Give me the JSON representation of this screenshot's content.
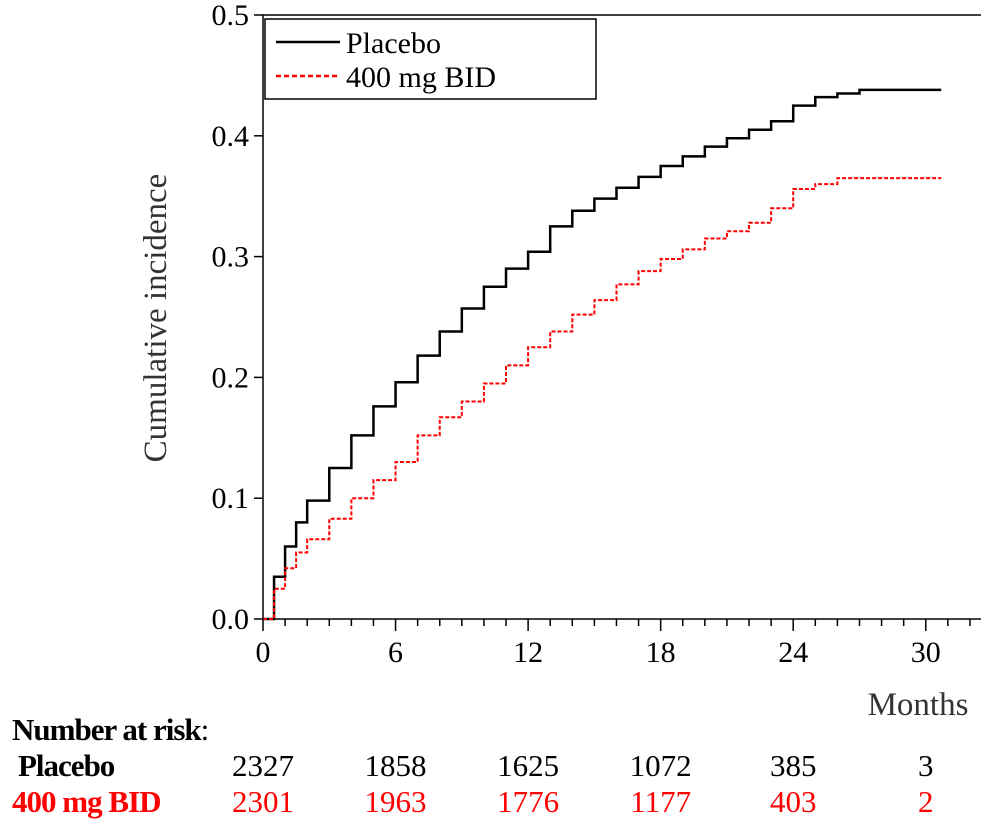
{
  "chart_data": {
    "type": "line",
    "title": "",
    "xlabel": "Months",
    "ylabel": "Cumulative incidence",
    "xlim": [
      0,
      32.5
    ],
    "ylim": [
      0,
      0.5
    ],
    "xticks": [
      0,
      6,
      12,
      18,
      24,
      30
    ],
    "xtick_labels": [
      "0",
      "6",
      "12",
      "18",
      "24",
      "30"
    ],
    "yticks": [
      0.0,
      0.1,
      0.2,
      0.3,
      0.4,
      0.5
    ],
    "ytick_labels": [
      "0.0",
      "0.1",
      "0.2",
      "0.3",
      "0.4",
      "0.5"
    ],
    "legend_position": "top-left",
    "grid": false,
    "series": [
      {
        "name": "Placebo",
        "color": "#000000",
        "style": "solid",
        "x": [
          0,
          0.5,
          1,
          1.5,
          2,
          3,
          4,
          5,
          6,
          7,
          8,
          9,
          10,
          11,
          12,
          13,
          14,
          15,
          16,
          17,
          18,
          19,
          20,
          21,
          22,
          23,
          24,
          25,
          26,
          27,
          28,
          29,
          30,
          30.7
        ],
        "y": [
          0,
          0.035,
          0.06,
          0.08,
          0.098,
          0.125,
          0.152,
          0.176,
          0.196,
          0.218,
          0.238,
          0.257,
          0.275,
          0.29,
          0.304,
          0.325,
          0.338,
          0.348,
          0.357,
          0.366,
          0.375,
          0.383,
          0.391,
          0.398,
          0.405,
          0.412,
          0.425,
          0.432,
          0.435,
          0.438,
          0.438,
          0.438,
          0.438,
          0.438
        ]
      },
      {
        "name": "400 mg BID",
        "color": "#ff0000",
        "style": "dashed",
        "x": [
          0,
          0.5,
          1,
          1.5,
          2,
          3,
          4,
          5,
          6,
          7,
          8,
          9,
          10,
          11,
          12,
          13,
          14,
          15,
          16,
          17,
          18,
          19,
          20,
          21,
          22,
          23,
          24,
          25,
          26,
          27,
          28,
          29,
          30,
          30.7
        ],
        "y": [
          0,
          0.025,
          0.042,
          0.055,
          0.066,
          0.083,
          0.1,
          0.115,
          0.13,
          0.152,
          0.167,
          0.18,
          0.195,
          0.21,
          0.225,
          0.238,
          0.252,
          0.264,
          0.277,
          0.288,
          0.298,
          0.306,
          0.315,
          0.321,
          0.328,
          0.34,
          0.356,
          0.36,
          0.365,
          0.365,
          0.365,
          0.365,
          0.365,
          0.365
        ]
      }
    ]
  },
  "risk_table": {
    "title": "Number at risk",
    "colon": ":",
    "columns_at_months": [
      0,
      6,
      12,
      18,
      24,
      30
    ],
    "rows": [
      {
        "name": "Placebo",
        "color": "#000000",
        "values": [
          "2327",
          "1858",
          "1625",
          "1072",
          "385",
          "3"
        ]
      },
      {
        "name": "400 mg BID",
        "color": "#ff0000",
        "values": [
          "2301",
          "1963",
          "1776",
          "1177",
          "403",
          "2"
        ]
      }
    ]
  }
}
